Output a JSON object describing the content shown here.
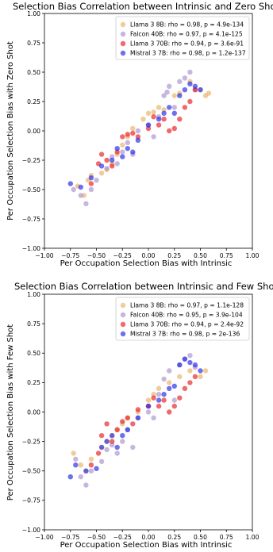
{
  "chart_data": [
    {
      "type": "scatter",
      "title": "Selection Bias Correlation between Intrinsic and Zero Shot",
      "xlabel": "Per Occupation Selection Bias with Intrinsic",
      "ylabel": "Per Occupation Selection Bias with Zero Shot",
      "xlim": [
        -1.0,
        1.0
      ],
      "ylim": [
        -1.0,
        1.0
      ],
      "xticks": [
        "−1.00",
        "−0.75",
        "−0.50",
        "−0.25",
        "0.00",
        "0.25",
        "0.50",
        "0.75",
        "1.00"
      ],
      "yticks": [
        "−1.00",
        "−0.75",
        "−0.50",
        "−0.25",
        "0.00",
        "0.25",
        "0.50",
        "0.75",
        "1.00"
      ],
      "grid": false,
      "legend_position": "top-right",
      "series": [
        {
          "name": "Llama 3 8B: rho = 0.98, p = 4.9e-134",
          "color": "#e8b063",
          "points": [
            [
              -0.68,
              -0.47
            ],
            [
              -0.62,
              -0.55
            ],
            [
              -0.58,
              -0.42
            ],
            [
              -0.55,
              -0.38
            ],
            [
              -0.45,
              -0.36
            ],
            [
              -0.4,
              -0.33
            ],
            [
              -0.35,
              -0.28
            ],
            [
              -0.3,
              -0.2
            ],
            [
              -0.25,
              -0.12
            ],
            [
              -0.2,
              -0.05
            ],
            [
              -0.15,
              0.02
            ],
            [
              -0.05,
              0.1
            ],
            [
              0.0,
              0.15
            ],
            [
              0.05,
              0.16
            ],
            [
              0.1,
              0.2
            ],
            [
              0.15,
              0.18
            ],
            [
              0.25,
              0.3
            ],
            [
              0.3,
              0.32
            ],
            [
              0.4,
              0.42
            ],
            [
              0.5,
              0.35
            ],
            [
              0.55,
              0.3
            ],
            [
              0.58,
              0.32
            ]
          ]
        },
        {
          "name": "Falcon 40B: rho = 0.97, p = 4.1e-125",
          "color": "#a98fd0",
          "points": [
            [
              -0.72,
              -0.5
            ],
            [
              -0.65,
              -0.55
            ],
            [
              -0.6,
              -0.62
            ],
            [
              -0.55,
              -0.5
            ],
            [
              -0.5,
              -0.42
            ],
            [
              -0.4,
              -0.32
            ],
            [
              -0.35,
              -0.22
            ],
            [
              -0.3,
              -0.28
            ],
            [
              -0.25,
              -0.18
            ],
            [
              -0.2,
              -0.1
            ],
            [
              -0.15,
              -0.2
            ],
            [
              -0.1,
              0.0
            ],
            [
              0.0,
              0.05
            ],
            [
              0.05,
              -0.05
            ],
            [
              0.1,
              0.12
            ],
            [
              0.15,
              0.3
            ],
            [
              0.18,
              0.33
            ],
            [
              0.2,
              0.38
            ],
            [
              0.25,
              0.2
            ],
            [
              0.3,
              0.42
            ],
            [
              0.35,
              0.45
            ],
            [
              0.4,
              0.5
            ],
            [
              0.45,
              0.35
            ]
          ]
        },
        {
          "name": "Llama 3 70B: rho = 0.94, p = 3.6e-91",
          "color": "#e8191e",
          "points": [
            [
              -0.55,
              -0.45
            ],
            [
              -0.48,
              -0.28
            ],
            [
              -0.45,
              -0.2
            ],
            [
              -0.4,
              -0.25
            ],
            [
              -0.35,
              -0.3
            ],
            [
              -0.3,
              -0.18
            ],
            [
              -0.25,
              -0.05
            ],
            [
              -0.2,
              -0.03
            ],
            [
              -0.15,
              -0.02
            ],
            [
              -0.1,
              -0.05
            ],
            [
              0.0,
              0.02
            ],
            [
              0.05,
              0.12
            ],
            [
              0.1,
              0.05
            ],
            [
              0.15,
              0.1
            ],
            [
              0.2,
              0.0
            ],
            [
              0.25,
              0.02
            ],
            [
              0.3,
              0.1
            ],
            [
              0.35,
              0.2
            ],
            [
              0.4,
              0.25
            ],
            [
              0.45,
              0.35
            ]
          ]
        },
        {
          "name": "Mistral 3 7B: rho = 0.98, p = 1.2e-137",
          "color": "#1f25e8",
          "points": [
            [
              -0.75,
              -0.45
            ],
            [
              -0.65,
              -0.48
            ],
            [
              -0.55,
              -0.4
            ],
            [
              -0.45,
              -0.3
            ],
            [
              -0.35,
              -0.25
            ],
            [
              -0.3,
              -0.15
            ],
            [
              -0.25,
              -0.22
            ],
            [
              -0.2,
              -0.15
            ],
            [
              -0.15,
              -0.18
            ],
            [
              -0.1,
              -0.08
            ],
            [
              0.0,
              0.05
            ],
            [
              0.1,
              0.1
            ],
            [
              0.15,
              0.15
            ],
            [
              0.2,
              0.2
            ],
            [
              0.25,
              0.15
            ],
            [
              0.3,
              0.3
            ],
            [
              0.35,
              0.35
            ],
            [
              0.4,
              0.4
            ],
            [
              0.45,
              0.38
            ],
            [
              0.5,
              0.35
            ]
          ]
        }
      ]
    },
    {
      "type": "scatter",
      "title": "Selection Bias Correlation between Intrinsic and Few Shot",
      "xlabel": "Per Occupation Selection Bias with Intrinsic",
      "ylabel": "Per Occupation Selection Bias with Few Shot",
      "xlim": [
        -1.0,
        1.0
      ],
      "ylim": [
        -1.0,
        1.0
      ],
      "xticks": [
        "−1.00",
        "−0.75",
        "−0.50",
        "−0.25",
        "0.00",
        "0.25",
        "0.50",
        "0.75",
        "1.00"
      ],
      "yticks": [
        "−1.00",
        "−0.75",
        "−0.50",
        "−0.25",
        "0.00",
        "0.25",
        "0.50",
        "0.75",
        "1.00"
      ],
      "grid": false,
      "legend_position": "top-right",
      "series": [
        {
          "name": "Llama 3 8B: rho = 0.97, p = 1.1e-128",
          "color": "#e8b063",
          "points": [
            [
              -0.72,
              -0.35
            ],
            [
              -0.65,
              -0.45
            ],
            [
              -0.6,
              -0.5
            ],
            [
              -0.55,
              -0.4
            ],
            [
              -0.45,
              -0.3
            ],
            [
              -0.4,
              -0.25
            ],
            [
              -0.35,
              -0.2
            ],
            [
              -0.3,
              -0.15
            ],
            [
              -0.25,
              -0.1
            ],
            [
              -0.2,
              -0.05
            ],
            [
              -0.1,
              0.0
            ],
            [
              0.0,
              0.1
            ],
            [
              0.05,
              0.15
            ],
            [
              0.1,
              0.2
            ],
            [
              0.2,
              0.25
            ],
            [
              0.3,
              0.3
            ],
            [
              0.4,
              0.35
            ],
            [
              0.5,
              0.3
            ],
            [
              0.55,
              0.35
            ]
          ]
        },
        {
          "name": "Falcon 40B: rho = 0.95, p = 3.9e-104",
          "color": "#a98fd0",
          "points": [
            [
              -0.7,
              -0.4
            ],
            [
              -0.65,
              -0.55
            ],
            [
              -0.6,
              -0.62
            ],
            [
              -0.55,
              -0.5
            ],
            [
              -0.45,
              -0.42
            ],
            [
              -0.4,
              -0.32
            ],
            [
              -0.35,
              -0.28
            ],
            [
              -0.3,
              -0.35
            ],
            [
              -0.25,
              -0.25
            ],
            [
              -0.2,
              -0.15
            ],
            [
              -0.15,
              -0.3
            ],
            [
              -0.1,
              -0.05
            ],
            [
              0.0,
              0.0
            ],
            [
              0.05,
              -0.05
            ],
            [
              0.1,
              0.15
            ],
            [
              0.15,
              0.28
            ],
            [
              0.2,
              0.35
            ],
            [
              0.25,
              0.1
            ],
            [
              0.3,
              0.4
            ],
            [
              0.35,
              0.45
            ],
            [
              0.4,
              0.48
            ],
            [
              0.45,
              0.38
            ]
          ]
        },
        {
          "name": "Llama 3 70B: rho = 0.94, p = 2.4e-92",
          "color": "#e8191e",
          "points": [
            [
              -0.55,
              -0.45
            ],
            [
              -0.48,
              -0.35
            ],
            [
              -0.45,
              -0.2
            ],
            [
              -0.4,
              -0.1
            ],
            [
              -0.35,
              -0.25
            ],
            [
              -0.3,
              -0.15
            ],
            [
              -0.25,
              -0.08
            ],
            [
              -0.2,
              -0.05
            ],
            [
              -0.15,
              -0.1
            ],
            [
              -0.1,
              0.02
            ],
            [
              0.0,
              0.05
            ],
            [
              0.05,
              0.12
            ],
            [
              0.1,
              0.05
            ],
            [
              0.15,
              0.1
            ],
            [
              0.2,
              0.0
            ],
            [
              0.25,
              0.05
            ],
            [
              0.3,
              0.12
            ],
            [
              0.35,
              0.2
            ],
            [
              0.4,
              0.25
            ],
            [
              0.45,
              0.3
            ]
          ]
        },
        {
          "name": "Mistral 3 7B: rho = 0.98, p = 2e-136",
          "color": "#1f25e8",
          "points": [
            [
              -0.75,
              -0.55
            ],
            [
              -0.7,
              -0.45
            ],
            [
              -0.6,
              -0.5
            ],
            [
              -0.5,
              -0.48
            ],
            [
              -0.45,
              -0.3
            ],
            [
              -0.4,
              -0.25
            ],
            [
              -0.35,
              -0.2
            ],
            [
              -0.3,
              -0.3
            ],
            [
              -0.25,
              -0.2
            ],
            [
              -0.2,
              -0.15
            ],
            [
              -0.1,
              -0.05
            ],
            [
              0.0,
              0.05
            ],
            [
              0.1,
              0.1
            ],
            [
              0.15,
              0.15
            ],
            [
              0.2,
              0.2
            ],
            [
              0.25,
              0.22
            ],
            [
              0.3,
              0.4
            ],
            [
              0.35,
              0.45
            ],
            [
              0.4,
              0.42
            ],
            [
              0.45,
              0.4
            ],
            [
              0.5,
              0.35
            ]
          ]
        }
      ]
    }
  ]
}
